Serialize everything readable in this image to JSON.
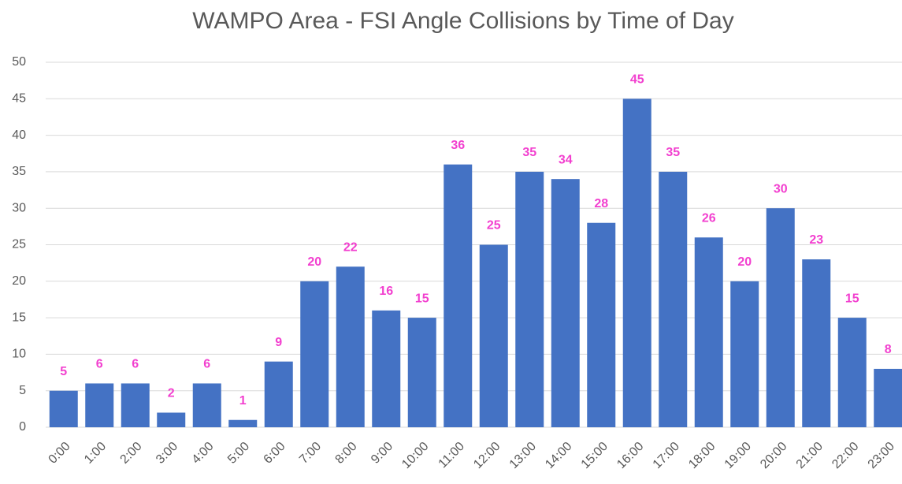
{
  "chart_data": {
    "type": "bar",
    "title": "WAMPO Area - FSI Angle Collisions by Time of Day",
    "categories": [
      "0:00",
      "1:00",
      "2:00",
      "3:00",
      "4:00",
      "5:00",
      "6:00",
      "7:00",
      "8:00",
      "9:00",
      "10:00",
      "11:00",
      "12:00",
      "13:00",
      "14:00",
      "15:00",
      "16:00",
      "17:00",
      "18:00",
      "19:00",
      "20:00",
      "21:00",
      "22:00",
      "23:00"
    ],
    "values": [
      5,
      6,
      6,
      2,
      6,
      1,
      9,
      20,
      22,
      16,
      15,
      36,
      25,
      35,
      34,
      28,
      45,
      35,
      26,
      20,
      30,
      23,
      15,
      8
    ],
    "color": "#4472c4",
    "label_color": "#f23fcf",
    "ylim": [
      0,
      50
    ],
    "yticks": [
      0,
      5,
      10,
      15,
      20,
      25,
      30,
      35,
      40,
      45,
      50
    ],
    "grid": true
  }
}
